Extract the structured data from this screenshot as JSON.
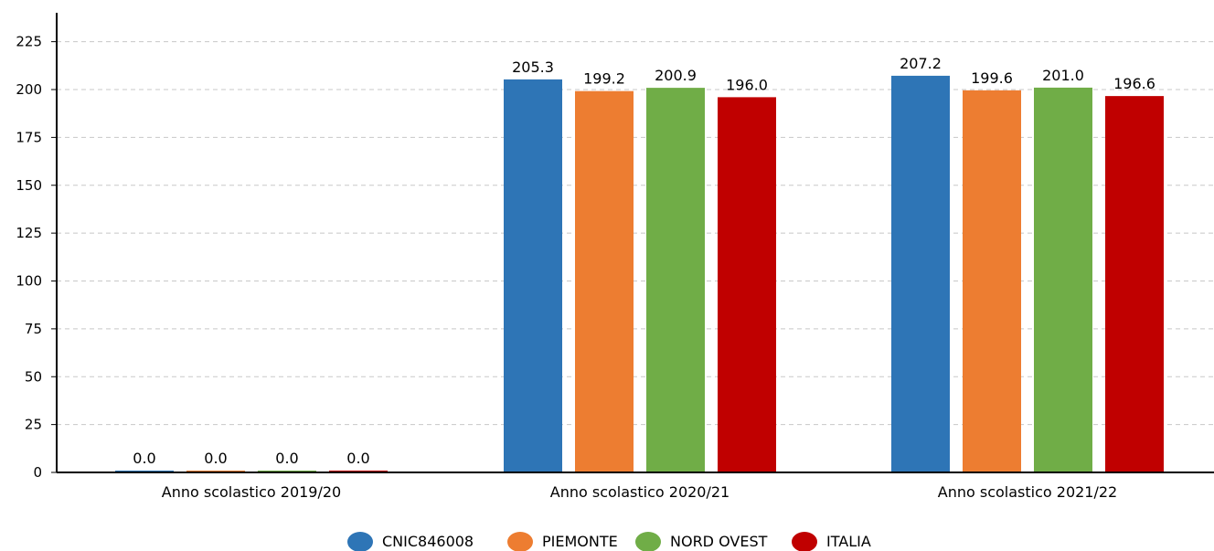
{
  "chart_data": {
    "type": "bar",
    "title": "",
    "xlabel": "",
    "ylabel": "",
    "ylim": [
      0,
      235
    ],
    "yticks": [
      0,
      25,
      50,
      75,
      100,
      125,
      150,
      175,
      200,
      225
    ],
    "grid": true,
    "legend_position": "bottom",
    "categories": [
      "Anno scolastico 2019/20",
      "Anno scolastico 2020/21",
      "Anno scolastico 2021/22"
    ],
    "series": [
      {
        "name": "CNIC846008",
        "color": "#2e75b6",
        "values": [
          0.0,
          205.3,
          207.2
        ],
        "labels": [
          "0.0",
          "205.3",
          "207.2"
        ]
      },
      {
        "name": "PIEMONTE",
        "color": "#ed7d31",
        "values": [
          0.0,
          199.2,
          199.6
        ],
        "labels": [
          "0.0",
          "199.2",
          "199.6"
        ]
      },
      {
        "name": "NORD OVEST",
        "color": "#70ad47",
        "values": [
          0.0,
          200.9,
          201.0
        ],
        "labels": [
          "0.0",
          "200.9",
          "201.0"
        ]
      },
      {
        "name": "ITALIA",
        "color": "#c00000",
        "values": [
          0.0,
          196.0,
          196.6
        ],
        "labels": [
          "0.0",
          "196.0",
          "196.6"
        ]
      }
    ]
  }
}
